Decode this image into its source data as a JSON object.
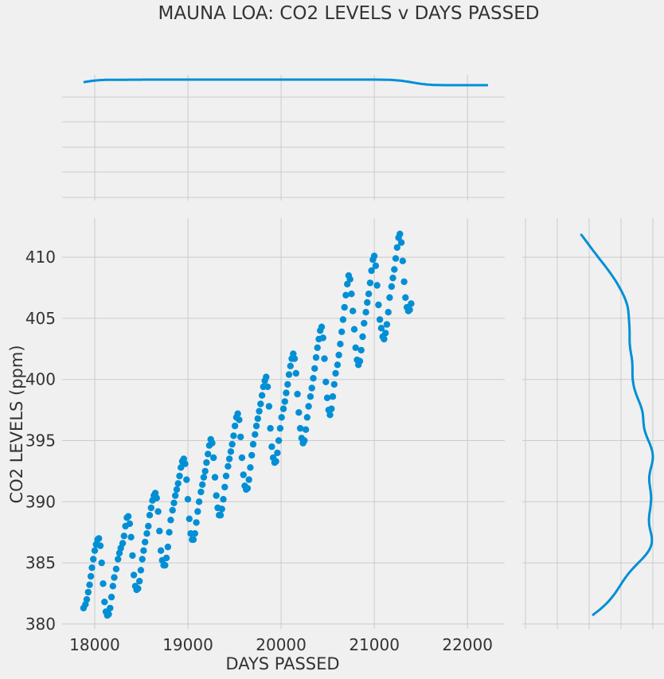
{
  "chart_data": {
    "type": "scatter",
    "title": "MAUNA LOA: CO2 LEVELS v DAYS PASSED",
    "xlabel": "DAYS PASSED",
    "ylabel": "CO2 LEVELS (ppm)",
    "xlim": [
      17650,
      22400
    ],
    "ylim": [
      379.6,
      413.2
    ],
    "xticks": [
      18000,
      19000,
      20000,
      21000,
      22000
    ],
    "yticks": [
      380,
      385,
      390,
      395,
      400,
      405,
      410
    ],
    "grid": true,
    "color": "#008fd5",
    "background": "#f0f0f0",
    "marginal_x": "density curve (top)",
    "marginal_y": "density curve (right)",
    "series": [
      {
        "points": [
          [
            17880,
            381.3
          ],
          [
            17900,
            381.6
          ],
          [
            17915,
            382.0
          ],
          [
            17930,
            382.6
          ],
          [
            17945,
            383.2
          ],
          [
            17958,
            383.9
          ],
          [
            17970,
            384.6
          ],
          [
            17985,
            385.3
          ],
          [
            18000,
            386.0
          ],
          [
            18015,
            386.5
          ],
          [
            18030,
            386.9
          ],
          [
            18045,
            387.0
          ],
          [
            18060,
            386.4
          ],
          [
            18075,
            385.0
          ],
          [
            18090,
            383.3
          ],
          [
            18105,
            381.8
          ],
          [
            18120,
            381.0
          ],
          [
            18135,
            380.7
          ],
          [
            18150,
            380.8
          ],
          [
            18165,
            381.3
          ],
          [
            18180,
            382.2
          ],
          [
            18195,
            383.1
          ],
          [
            18210,
            383.8
          ],
          [
            18230,
            384.5
          ],
          [
            18250,
            385.3
          ],
          [
            18265,
            385.8
          ],
          [
            18280,
            386.2
          ],
          [
            18300,
            386.6
          ],
          [
            18315,
            387.2
          ],
          [
            18330,
            388.0
          ],
          [
            18345,
            388.7
          ],
          [
            18360,
            388.8
          ],
          [
            18375,
            388.2
          ],
          [
            18390,
            387.1
          ],
          [
            18405,
            385.6
          ],
          [
            18420,
            384.0
          ],
          [
            18435,
            383.1
          ],
          [
            18450,
            382.8
          ],
          [
            18465,
            382.9
          ],
          [
            18480,
            383.5
          ],
          [
            18495,
            384.4
          ],
          [
            18510,
            385.3
          ],
          [
            18525,
            386.0
          ],
          [
            18540,
            386.7
          ],
          [
            18560,
            387.4
          ],
          [
            18575,
            388.0
          ],
          [
            18590,
            388.9
          ],
          [
            18605,
            389.5
          ],
          [
            18620,
            390.1
          ],
          [
            18635,
            390.5
          ],
          [
            18650,
            390.7
          ],
          [
            18665,
            390.3
          ],
          [
            18680,
            389.2
          ],
          [
            18695,
            387.6
          ],
          [
            18710,
            386.0
          ],
          [
            18725,
            385.2
          ],
          [
            18740,
            384.8
          ],
          [
            18755,
            384.8
          ],
          [
            18770,
            385.4
          ],
          [
            18785,
            386.3
          ],
          [
            18800,
            387.5
          ],
          [
            18815,
            388.5
          ],
          [
            18835,
            389.3
          ],
          [
            18850,
            389.9
          ],
          [
            18865,
            390.5
          ],
          [
            18880,
            391.0
          ],
          [
            18895,
            391.5
          ],
          [
            18910,
            392.1
          ],
          [
            18925,
            392.8
          ],
          [
            18940,
            393.3
          ],
          [
            18955,
            393.5
          ],
          [
            18970,
            393.1
          ],
          [
            18985,
            391.8
          ],
          [
            19000,
            390.2
          ],
          [
            19015,
            388.6
          ],
          [
            19030,
            387.4
          ],
          [
            19045,
            386.9
          ],
          [
            19060,
            386.9
          ],
          [
            19075,
            387.4
          ],
          [
            19090,
            388.3
          ],
          [
            19105,
            389.2
          ],
          [
            19120,
            390.0
          ],
          [
            19140,
            390.8
          ],
          [
            19155,
            391.4
          ],
          [
            19170,
            392.0
          ],
          [
            19185,
            392.5
          ],
          [
            19200,
            393.2
          ],
          [
            19215,
            393.9
          ],
          [
            19230,
            394.6
          ],
          [
            19245,
            395.1
          ],
          [
            19260,
            394.8
          ],
          [
            19275,
            393.6
          ],
          [
            19290,
            392.0
          ],
          [
            19305,
            390.5
          ],
          [
            19320,
            389.5
          ],
          [
            19335,
            388.9
          ],
          [
            19350,
            388.9
          ],
          [
            19365,
            389.4
          ],
          [
            19380,
            390.2
          ],
          [
            19395,
            391.2
          ],
          [
            19410,
            392.1
          ],
          [
            19430,
            392.9
          ],
          [
            19445,
            393.5
          ],
          [
            19460,
            394.1
          ],
          [
            19475,
            394.7
          ],
          [
            19490,
            395.4
          ],
          [
            19505,
            396.2
          ],
          [
            19520,
            396.9
          ],
          [
            19535,
            397.2
          ],
          [
            19550,
            396.7
          ],
          [
            19565,
            395.3
          ],
          [
            19580,
            393.6
          ],
          [
            19595,
            392.2
          ],
          [
            19610,
            391.3
          ],
          [
            19625,
            391.0
          ],
          [
            19640,
            391.1
          ],
          [
            19655,
            391.8
          ],
          [
            19670,
            392.8
          ],
          [
            19685,
            393.8
          ],
          [
            19700,
            394.7
          ],
          [
            19720,
            395.5
          ],
          [
            19735,
            396.2
          ],
          [
            19750,
            396.8
          ],
          [
            19765,
            397.4
          ],
          [
            19780,
            398.0
          ],
          [
            19795,
            398.7
          ],
          [
            19810,
            399.4
          ],
          [
            19825,
            399.9
          ],
          [
            19840,
            400.2
          ],
          [
            19855,
            399.4
          ],
          [
            19870,
            397.8
          ],
          [
            19885,
            396.0
          ],
          [
            19900,
            394.5
          ],
          [
            19915,
            393.6
          ],
          [
            19930,
            393.2
          ],
          [
            19945,
            393.3
          ],
          [
            19960,
            394.0
          ],
          [
            19975,
            395.0
          ],
          [
            19990,
            396.0
          ],
          [
            20005,
            396.9
          ],
          [
            20025,
            397.6
          ],
          [
            20040,
            398.2
          ],
          [
            20055,
            398.9
          ],
          [
            20070,
            399.6
          ],
          [
            20085,
            400.4
          ],
          [
            20100,
            401.1
          ],
          [
            20115,
            401.7
          ],
          [
            20130,
            402.1
          ],
          [
            20145,
            401.7
          ],
          [
            20160,
            400.5
          ],
          [
            20175,
            398.8
          ],
          [
            20190,
            397.3
          ],
          [
            20205,
            396.0
          ],
          [
            20220,
            395.2
          ],
          [
            20235,
            394.8
          ],
          [
            20250,
            395.0
          ],
          [
            20265,
            395.9
          ],
          [
            20280,
            396.9
          ],
          [
            20295,
            397.8
          ],
          [
            20315,
            398.6
          ],
          [
            20330,
            399.3
          ],
          [
            20345,
            400.1
          ],
          [
            20360,
            400.9
          ],
          [
            20375,
            401.8
          ],
          [
            20390,
            402.6
          ],
          [
            20405,
            403.3
          ],
          [
            20420,
            404.0
          ],
          [
            20435,
            404.3
          ],
          [
            20450,
            403.4
          ],
          [
            20465,
            401.7
          ],
          [
            20480,
            399.8
          ],
          [
            20495,
            398.5
          ],
          [
            20510,
            397.5
          ],
          [
            20525,
            397.1
          ],
          [
            20540,
            397.6
          ],
          [
            20555,
            398.6
          ],
          [
            20570,
            399.6
          ],
          [
            20585,
            400.5
          ],
          [
            20605,
            401.2
          ],
          [
            20620,
            402.0
          ],
          [
            20635,
            402.9
          ],
          [
            20650,
            403.9
          ],
          [
            20665,
            404.9
          ],
          [
            20680,
            405.9
          ],
          [
            20695,
            406.9
          ],
          [
            20710,
            407.8
          ],
          [
            20725,
            408.5
          ],
          [
            20740,
            408.2
          ],
          [
            20755,
            407.0
          ],
          [
            20770,
            405.6
          ],
          [
            20785,
            404.1
          ],
          [
            20800,
            402.6
          ],
          [
            20815,
            401.6
          ],
          [
            20830,
            401.2
          ],
          [
            20845,
            401.5
          ],
          [
            20860,
            402.4
          ],
          [
            20875,
            403.5
          ],
          [
            20890,
            404.6
          ],
          [
            20910,
            405.5
          ],
          [
            20925,
            406.3
          ],
          [
            20940,
            407.0
          ],
          [
            20955,
            407.9
          ],
          [
            20970,
            408.9
          ],
          [
            20985,
            409.8
          ],
          [
            21000,
            410.1
          ],
          [
            21015,
            409.3
          ],
          [
            21030,
            407.7
          ],
          [
            21045,
            406.1
          ],
          [
            21060,
            404.9
          ],
          [
            21075,
            404.2
          ],
          [
            21090,
            403.5
          ],
          [
            21105,
            403.3
          ],
          [
            21120,
            403.8
          ],
          [
            21135,
            404.5
          ],
          [
            21150,
            405.5
          ],
          [
            21165,
            406.7
          ],
          [
            21185,
            407.6
          ],
          [
            21200,
            408.3
          ],
          [
            21215,
            409.0
          ],
          [
            21230,
            409.9
          ],
          [
            21245,
            410.8
          ],
          [
            21260,
            411.6
          ],
          [
            21275,
            411.9
          ],
          [
            21290,
            411.2
          ],
          [
            21305,
            409.7
          ],
          [
            21320,
            408.0
          ],
          [
            21335,
            406.7
          ],
          [
            21350,
            405.9
          ],
          [
            21365,
            405.6
          ],
          [
            21380,
            405.7
          ],
          [
            21395,
            406.2
          ]
        ]
      }
    ]
  }
}
